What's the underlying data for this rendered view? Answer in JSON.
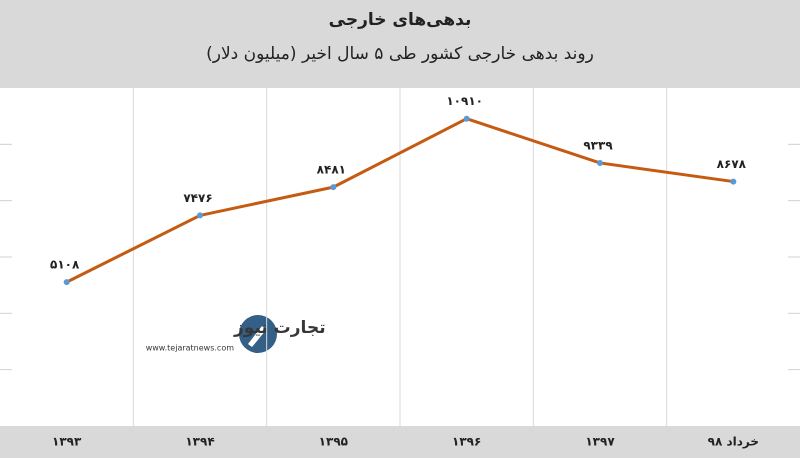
{
  "chart_data": {
    "type": "line",
    "title": "بدهی‌های خارجی",
    "subtitle": "روند بدهی خارجی کشور طی ۵ سال اخیر (میلیون دلار)",
    "categories": [
      "۱۳۹۳",
      "۱۳۹۴",
      "۱۳۹۵",
      "۱۳۹۶",
      "۱۳۹۷",
      "خرداد ۹۸"
    ],
    "series": [
      {
        "color": "#c55a11",
        "marker_color": "#5b9bd5",
        "values": [
          5108,
          7476,
          8481,
          10910,
          9339,
          8678
        ],
        "value_labels": [
          "۵۱۰۸",
          "۷۴۷۶",
          "۸۴۸۱",
          "۱۰۹۱۰",
          "۹۳۳۹",
          "۸۶۷۸"
        ]
      }
    ],
    "ylim": [
      0,
      12000
    ],
    "yticks": [
      2000,
      4000,
      6000,
      8000,
      10000
    ],
    "grid": true
  },
  "watermark": {
    "name": "تجارت نیوز",
    "url": "www.tejaratnews.com"
  }
}
